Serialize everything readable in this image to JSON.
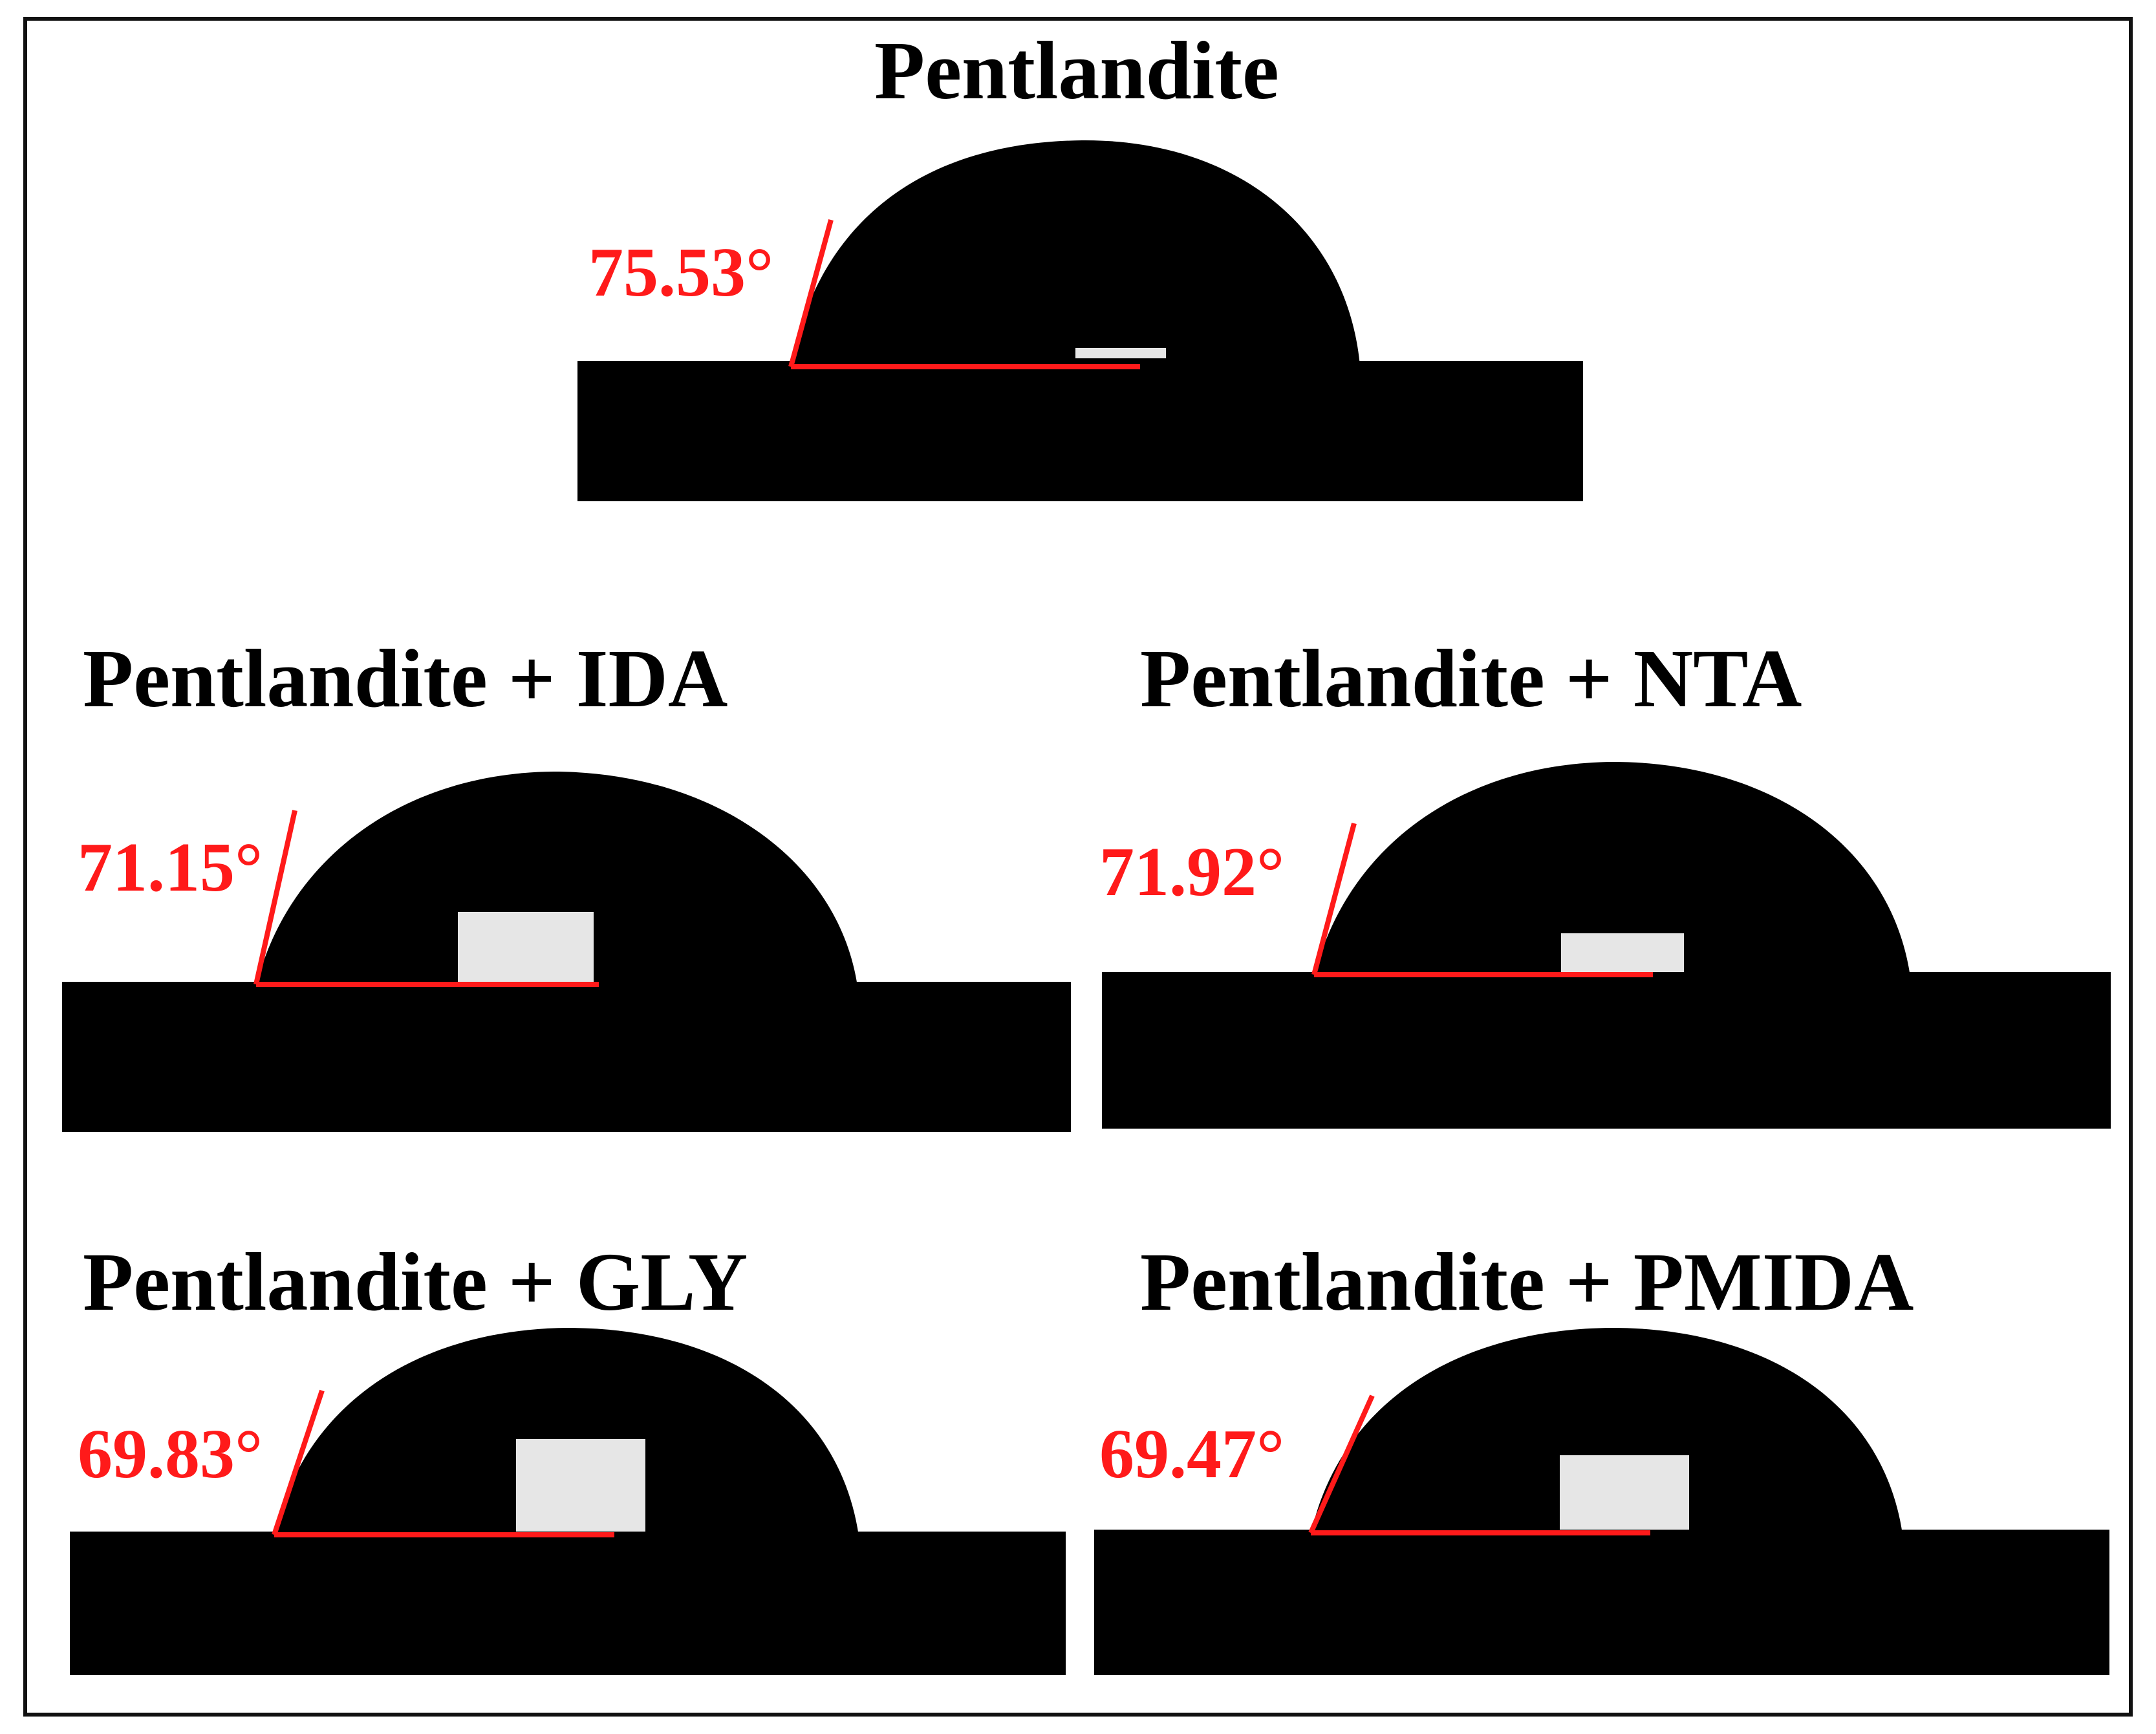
{
  "colors": {
    "background": "#ffffff",
    "droplet": "#000000",
    "annotation": "#ff1a1a",
    "reflection": "#e6e6e6"
  },
  "panels": [
    {
      "key": "pentlandite",
      "title": "Pentlandite",
      "contact_angle_deg": 75.53,
      "angle_label": "75.53°"
    },
    {
      "key": "pentlandite-ida",
      "title": "Pentlandite + IDA",
      "contact_angle_deg": 71.15,
      "angle_label": "71.15°"
    },
    {
      "key": "pentlandite-nta",
      "title": "Pentlandite + NTA",
      "contact_angle_deg": 71.92,
      "angle_label": "71.92°"
    },
    {
      "key": "pentlandite-gly",
      "title": "Pentlandite + GLY",
      "contact_angle_deg": 69.83,
      "angle_label": "69.83°"
    },
    {
      "key": "pentlandite-pmida",
      "title": "Pentlandite + PMIDA",
      "contact_angle_deg": 69.47,
      "angle_label": "69.47°"
    }
  ]
}
